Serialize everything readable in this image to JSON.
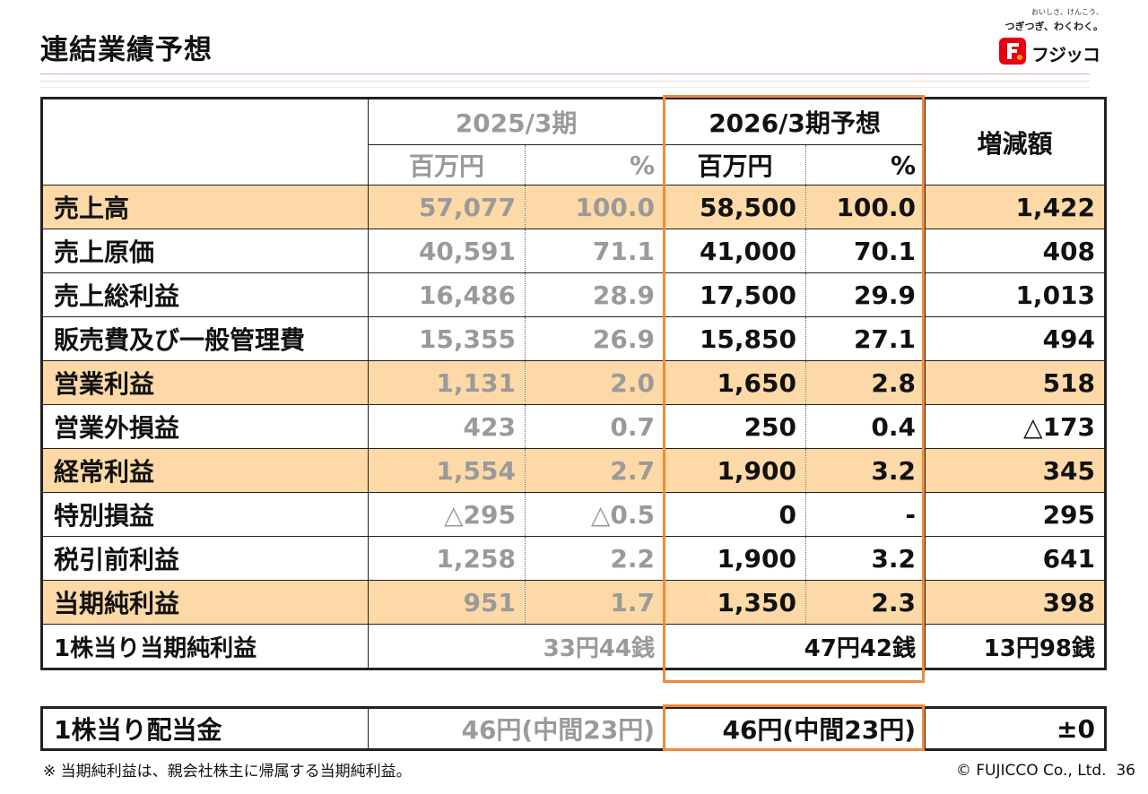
{
  "title": "連結業績予想",
  "logo": {
    "slogan_small": "おいしさ、けんこう、",
    "slogan": "つぎつぎ、わくわく。",
    "name": "フジッコ"
  },
  "header": {
    "prev_period": "2025/3期",
    "forecast_period": "2026/3期予想",
    "change": "増減額",
    "unit_million": "百万円",
    "unit_percent": "%"
  },
  "rows": [
    {
      "label": "売上高",
      "prev_m": "57,077",
      "prev_p": "100.0",
      "cur_m": "58,500",
      "cur_p": "100.0",
      "change": "1,422",
      "highlight": true
    },
    {
      "label": "売上原価",
      "prev_m": "40,591",
      "prev_p": "71.1",
      "cur_m": "41,000",
      "cur_p": "70.1",
      "change": "408",
      "highlight": false
    },
    {
      "label": "売上総利益",
      "prev_m": "16,486",
      "prev_p": "28.9",
      "cur_m": "17,500",
      "cur_p": "29.9",
      "change": "1,013",
      "highlight": false
    },
    {
      "label": "販売費及び一般管理費",
      "prev_m": "15,355",
      "prev_p": "26.9",
      "cur_m": "15,850",
      "cur_p": "27.1",
      "change": "494",
      "highlight": false
    },
    {
      "label": "営業利益",
      "prev_m": "1,131",
      "prev_p": "2.0",
      "cur_m": "1,650",
      "cur_p": "2.8",
      "change": "518",
      "highlight": true
    },
    {
      "label": "営業外損益",
      "prev_m": "423",
      "prev_p": "0.7",
      "cur_m": "250",
      "cur_p": "0.4",
      "change": "△173",
      "highlight": false
    },
    {
      "label": "経常利益",
      "prev_m": "1,554",
      "prev_p": "2.7",
      "cur_m": "1,900",
      "cur_p": "3.2",
      "change": "345",
      "highlight": true
    },
    {
      "label": "特別損益",
      "prev_m": "△295",
      "prev_p": "△0.5",
      "cur_m": "0",
      "cur_p": "-",
      "change": "295",
      "highlight": false
    },
    {
      "label": "税引前利益",
      "prev_m": "1,258",
      "prev_p": "2.2",
      "cur_m": "1,900",
      "cur_p": "3.2",
      "change": "641",
      "highlight": false
    },
    {
      "label": "当期純利益",
      "prev_m": "951",
      "prev_p": "1.7",
      "cur_m": "1,350",
      "cur_p": "2.3",
      "change": "398",
      "highlight": true
    }
  ],
  "eps": {
    "label": "1株当り当期純利益",
    "prev": "33円44銭",
    "cur": "47円42銭",
    "change": "13円98銭"
  },
  "dividend": {
    "label": "1株当り配当金",
    "prev": "46円(中間23円)",
    "cur": "46円(中間23円)",
    "change": "±0"
  },
  "footnote": "※ 当期純利益は、親会社株主に帰属する当期純利益。",
  "copyright": "© FUJICCO Co., Ltd.",
  "page_number": "36",
  "colors": {
    "highlight": "#fcd9a6",
    "forecast_frame": "#f08a3a",
    "prev_text": "#9a9a9a"
  }
}
